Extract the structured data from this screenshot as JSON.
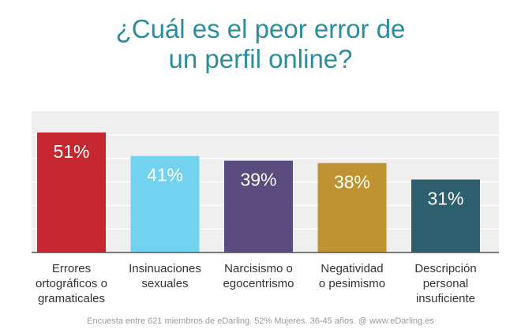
{
  "chart_data": {
    "type": "bar",
    "title_lines": [
      "¿Cuál es el peor error de",
      "un perfil online?"
    ],
    "categories": [
      [
        "Errores",
        "ortográficos o",
        "gramaticales"
      ],
      [
        "Insinuaciones",
        "sexuales"
      ],
      [
        "Narcisismo o",
        "egocentrismo"
      ],
      [
        "Negatividad",
        "o pesimismo"
      ],
      [
        "Descripción",
        "personal",
        "insuficiente"
      ]
    ],
    "values": [
      51,
      41,
      39,
      38,
      31
    ],
    "data_labels": [
      "51%",
      "41%",
      "39%",
      "38%",
      "31%"
    ],
    "bar_colors": [
      "#c5282f",
      "#72d2f0",
      "#5b4c7e",
      "#bf9331",
      "#2e5f6e"
    ],
    "ylim": [
      0,
      60
    ],
    "grid": true,
    "xlabel": "",
    "ylabel": "",
    "footer": "Encuesta entre 621 miembros de eDarling. 52% Mujeres. 36-45 años. @ www.eDarling.es",
    "colors": {
      "title": "#2a8e9e",
      "plot_background": "#efefef",
      "gridline": "#ffffff",
      "baseline": "#555555",
      "category_text": "#333333",
      "footer_text": "#9a9a9a"
    }
  }
}
